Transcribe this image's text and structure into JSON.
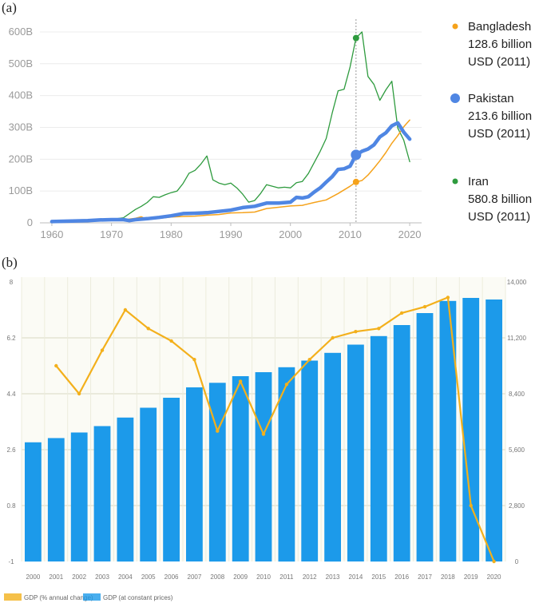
{
  "panels": {
    "a": "(a)",
    "b": "(b)"
  },
  "chart_data": [
    {
      "type": "line",
      "title": "",
      "xlabel": "",
      "ylabel": "",
      "x_ticks": [
        "1960",
        "1970",
        "1980",
        "1990",
        "2000",
        "2010",
        "2020"
      ],
      "y_ticks": [
        "0",
        "100B",
        "200B",
        "300B",
        "400B",
        "500B",
        "600B"
      ],
      "xlim": [
        1958,
        2022
      ],
      "ylim": [
        0,
        620
      ],
      "grid": "horizontal",
      "legend_position": "right",
      "highlight_year": 2011,
      "series": [
        {
          "name": "Bangladesh",
          "color": "#F5A21B",
          "highlight_label": "128.6 billion",
          "highlight_unit": "USD (2011)",
          "highlight_value": 128.6,
          "points": [
            [
              1960,
              4
            ],
            [
              1962,
              5
            ],
            [
              1964,
              6
            ],
            [
              1966,
              7
            ],
            [
              1968,
              8
            ],
            [
              1970,
              9
            ],
            [
              1972,
              8
            ],
            [
              1973,
              12
            ],
            [
              1974,
              14
            ],
            [
              1975,
              19
            ],
            [
              1976,
              10
            ],
            [
              1978,
              14
            ],
            [
              1980,
              18
            ],
            [
              1982,
              20
            ],
            [
              1984,
              21
            ],
            [
              1986,
              24
            ],
            [
              1988,
              26
            ],
            [
              1990,
              31
            ],
            [
              1992,
              32
            ],
            [
              1994,
              34
            ],
            [
              1996,
              45
            ],
            [
              1998,
              49
            ],
            [
              2000,
              53
            ],
            [
              2002,
              55
            ],
            [
              2004,
              64
            ],
            [
              2006,
              72
            ],
            [
              2008,
              92
            ],
            [
              2010,
              115
            ],
            [
              2011,
              128.6
            ],
            [
              2012,
              133
            ],
            [
              2013,
              150
            ],
            [
              2014,
              172
            ],
            [
              2015,
              195
            ],
            [
              2016,
              221
            ],
            [
              2017,
              250
            ],
            [
              2018,
              274
            ],
            [
              2019,
              302
            ],
            [
              2020,
              323
            ]
          ]
        },
        {
          "name": "Pakistan",
          "color": "#4F86E3",
          "highlight_label": "213.6 billion",
          "highlight_unit": "USD (2011)",
          "highlight_value": 213.6,
          "points": [
            [
              1960,
              4
            ],
            [
              1962,
              5
            ],
            [
              1964,
              6
            ],
            [
              1966,
              7
            ],
            [
              1968,
              9
            ],
            [
              1970,
              10
            ],
            [
              1972,
              10
            ],
            [
              1973,
              7
            ],
            [
              1974,
              10
            ],
            [
              1976,
              13
            ],
            [
              1978,
              17
            ],
            [
              1980,
              22
            ],
            [
              1982,
              29
            ],
            [
              1984,
              30
            ],
            [
              1986,
              32
            ],
            [
              1988,
              36
            ],
            [
              1990,
              40
            ],
            [
              1992,
              48
            ],
            [
              1994,
              52
            ],
            [
              1996,
              62
            ],
            [
              1998,
              62
            ],
            [
              2000,
              65
            ],
            [
              2001,
              80
            ],
            [
              2002,
              78
            ],
            [
              2003,
              82
            ],
            [
              2004,
              97
            ],
            [
              2005,
              110
            ],
            [
              2006,
              128
            ],
            [
              2007,
              145
            ],
            [
              2008,
              168
            ],
            [
              2009,
              170
            ],
            [
              2010,
              178
            ],
            [
              2011,
              213.6
            ],
            [
              2012,
              225
            ],
            [
              2013,
              232
            ],
            [
              2014,
              245
            ],
            [
              2015,
              270
            ],
            [
              2016,
              283
            ],
            [
              2017,
              305
            ],
            [
              2018,
              314
            ],
            [
              2019,
              285
            ],
            [
              2020,
              263
            ]
          ]
        },
        {
          "name": "Iran",
          "color": "#2E9B3E",
          "highlight_label": "580.8 billion",
          "highlight_unit": "USD (2011)",
          "highlight_value": 580.8,
          "points": [
            [
              1960,
              4
            ],
            [
              1962,
              5
            ],
            [
              1964,
              6
            ],
            [
              1966,
              7
            ],
            [
              1968,
              9
            ],
            [
              1970,
              11
            ],
            [
              1972,
              16
            ],
            [
              1974,
              42
            ],
            [
              1975,
              52
            ],
            [
              1976,
              64
            ],
            [
              1977,
              82
            ],
            [
              1978,
              80
            ],
            [
              1979,
              88
            ],
            [
              1980,
              95
            ],
            [
              1981,
              100
            ],
            [
              1982,
              124
            ],
            [
              1983,
              156
            ],
            [
              1984,
              165
            ],
            [
              1985,
              185
            ],
            [
              1986,
              210
            ],
            [
              1987,
              135
            ],
            [
              1988,
              125
            ],
            [
              1989,
              120
            ],
            [
              1990,
              125
            ],
            [
              1991,
              110
            ],
            [
              1992,
              90
            ],
            [
              1993,
              65
            ],
            [
              1994,
              70
            ],
            [
              1995,
              92
            ],
            [
              1996,
              120
            ],
            [
              1997,
              115
            ],
            [
              1998,
              110
            ],
            [
              1999,
              112
            ],
            [
              2000,
              110
            ],
            [
              2001,
              126
            ],
            [
              2002,
              130
            ],
            [
              2003,
              155
            ],
            [
              2004,
              190
            ],
            [
              2005,
              225
            ],
            [
              2006,
              265
            ],
            [
              2007,
              345
            ],
            [
              2008,
              415
            ],
            [
              2009,
              420
            ],
            [
              2010,
              490
            ],
            [
              2011,
              580.8
            ],
            [
              2012,
              600
            ],
            [
              2013,
              460
            ],
            [
              2014,
              435
            ],
            [
              2015,
              385
            ],
            [
              2016,
              418
            ],
            [
              2017,
              445
            ],
            [
              2018,
              298
            ],
            [
              2019,
              260
            ],
            [
              2020,
              192
            ]
          ]
        }
      ]
    },
    {
      "type": "bar",
      "title": "",
      "xlabel": "",
      "categories": [
        "2000",
        "2001",
        "2002",
        "2003",
        "2004",
        "2005",
        "2006",
        "2007",
        "2008",
        "2009",
        "2010",
        "2011",
        "2012",
        "2013",
        "2014",
        "2015",
        "2016",
        "2017",
        "2018",
        "2019",
        "2020"
      ],
      "left_axis": {
        "ticks": [
          "8",
          "6.2",
          "4.4",
          "2.6",
          "0.8",
          "-1"
        ],
        "range": [
          -1,
          8
        ]
      },
      "right_axis": {
        "ticks": [
          "14,000",
          "11,200",
          "8,400",
          "5,600",
          "2,800",
          "0"
        ],
        "range": [
          0,
          14000
        ],
        "label": ""
      },
      "series": [
        {
          "name": "GDP (at constant prices)",
          "type": "bar",
          "axis": "right",
          "color": "#1C9AEA",
          "values": [
            5970,
            6180,
            6460,
            6780,
            7210,
            7700,
            8200,
            8720,
            8950,
            9280,
            9480,
            9730,
            10060,
            10450,
            10860,
            11290,
            11840,
            12440,
            13050,
            13200,
            13120
          ]
        },
        {
          "name": "GDP (% annual change)",
          "type": "line",
          "axis": "left",
          "color": "#F3B01C",
          "values": [
            null,
            5.3,
            4.4,
            5.8,
            7.1,
            6.5,
            6.1,
            5.5,
            3.2,
            4.8,
            3.1,
            4.7,
            5.5,
            6.2,
            6.4,
            6.5,
            7.0,
            7.2,
            7.5,
            0.8,
            -1.0
          ]
        }
      ]
    }
  ]
}
